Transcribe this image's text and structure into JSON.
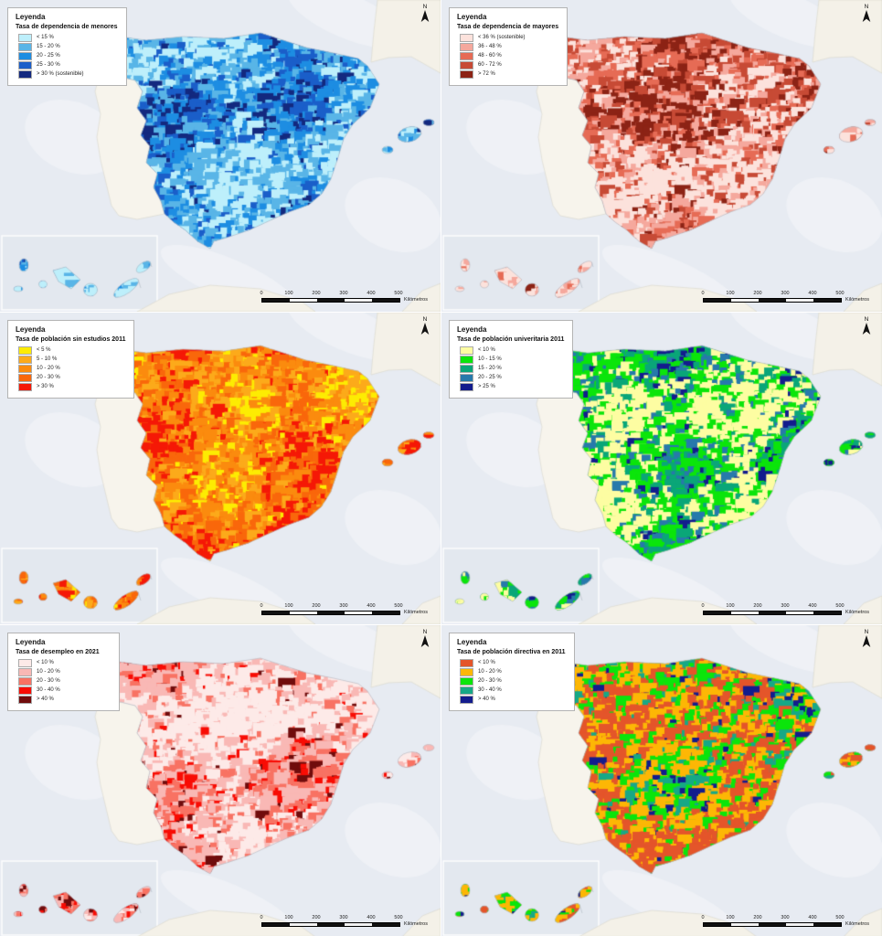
{
  "legend_title_label": "Leyenda",
  "north_label": "N",
  "scalebar": {
    "ticks": [
      "0",
      "100",
      "200",
      "300",
      "400",
      "500"
    ],
    "unit": "Kilómetros"
  },
  "colors": {
    "sea": "#e7ebf2",
    "other_land": "#f4f1e8",
    "portugal_land": "#f7f4ec",
    "coast_line": "#b7bec8",
    "inset_fill": "#e3e8ef"
  },
  "maps": [
    {
      "title": "Tasa de dependencia de menores",
      "classes": [
        {
          "label": "< 15 %",
          "color": "#bdeffb"
        },
        {
          "label": "15 - 20 %",
          "color": "#59b5e7"
        },
        {
          "label": "20 - 25 %",
          "color": "#1d8de2"
        },
        {
          "label": "25 - 30 %",
          "color": "#1a5ec9"
        },
        {
          "label": "> 30 % (sostenible)",
          "color": "#13297f"
        }
      ]
    },
    {
      "title": "Tasa de dependencia de mayores",
      "classes": [
        {
          "label": "< 36 % (sostenible)",
          "color": "#fce2dc"
        },
        {
          "label": "36 - 48 %",
          "color": "#f5a89d"
        },
        {
          "label": "48 - 60 %",
          "color": "#e66b55"
        },
        {
          "label": "60 - 72 %",
          "color": "#c74a35"
        },
        {
          "label": "> 72 %",
          "color": "#8c2315"
        }
      ]
    },
    {
      "title": "Tasa de población sin estudios 2011",
      "classes": [
        {
          "label": "< 5 %",
          "color": "#fdec02"
        },
        {
          "label": "5 - 10 %",
          "color": "#fcaa1a"
        },
        {
          "label": "10 - 20 %",
          "color": "#fb8b0e"
        },
        {
          "label": "20 - 30 %",
          "color": "#f9670b"
        },
        {
          "label": "> 30 %",
          "color": "#f51806"
        }
      ]
    },
    {
      "title": "Tasa de población univeritaria 2011",
      "classes": [
        {
          "label": "< 10 %",
          "color": "#fdfda2"
        },
        {
          "label": "10 - 15 %",
          "color": "#0be50b"
        },
        {
          "label": "15 - 20 %",
          "color": "#0aa678"
        },
        {
          "label": "20 - 25 %",
          "color": "#2779ab"
        },
        {
          "label": "> 25 %",
          "color": "#131c8d"
        }
      ]
    },
    {
      "title": "Tasa de desempleo en 2021",
      "classes": [
        {
          "label": "< 10 %",
          "color": "#fdeae8"
        },
        {
          "label": "10 - 20 %",
          "color": "#f9b8b5"
        },
        {
          "label": "20 - 30 %",
          "color": "#f87263"
        },
        {
          "label": "30 - 40 %",
          "color": "#f80c04"
        },
        {
          "label": "> 40 %",
          "color": "#700c0c"
        }
      ]
    },
    {
      "title": "Tasa de población directiva en 2011",
      "classes": [
        {
          "label": "< 10 %",
          "color": "#e4552a"
        },
        {
          "label": "10 - 20 %",
          "color": "#fdb705"
        },
        {
          "label": "20 - 30 %",
          "color": "#0be50b"
        },
        {
          "label": "30 - 40 %",
          "color": "#17a886"
        },
        {
          "label": "> 40 %",
          "color": "#131c8d"
        }
      ]
    }
  ]
}
